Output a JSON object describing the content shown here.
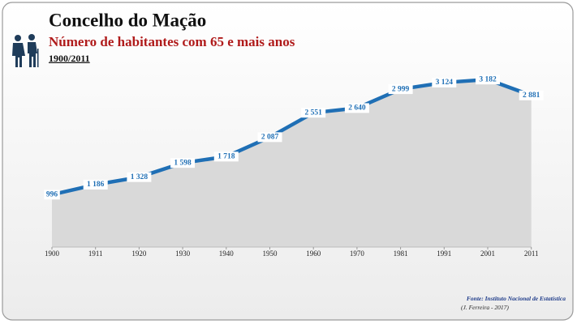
{
  "chart_data": {
    "type": "area",
    "title": "Concelho do Mação",
    "subtitle": "Número de habitantes com 65 e mais anos",
    "period": "1900/2011",
    "source": "Fonte: Instituto Nacional de Estatística",
    "author": "(J. Ferreira - 2017)",
    "categories": [
      "1900",
      "1911",
      "1920",
      "1930",
      "1940",
      "1950",
      "1960",
      "1970",
      "1981",
      "1991",
      "2001",
      "2011"
    ],
    "values": [
      996,
      1186,
      1328,
      1598,
      1718,
      2087,
      2551,
      2640,
      2999,
      3124,
      3182,
      2881
    ],
    "value_labels": [
      "996",
      "1 186",
      "1 328",
      "1 598",
      "1 718",
      "2 087",
      "2 551",
      "2 640",
      "2 999",
      "3 124",
      "3 182",
      "2 881"
    ],
    "ylim": [
      0,
      3500
    ],
    "color": "#1f6fb5",
    "area_color": "#d9d9d9"
  }
}
